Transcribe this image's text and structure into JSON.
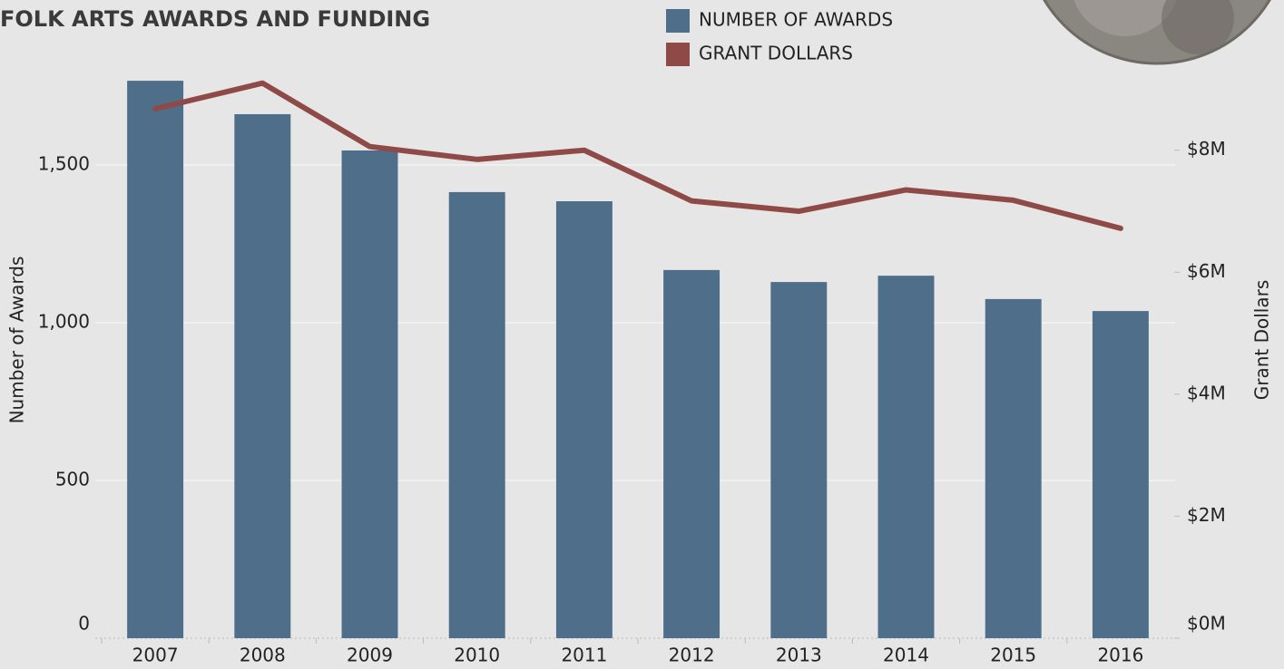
{
  "chart_data": {
    "type": "bar_line",
    "title": "FOLK ARTS AWARDS AND FUNDING",
    "y_label": "Number of Awards",
    "y2_label": "Grant Dollars",
    "categories": [
      "2007",
      "2008",
      "2009",
      "2010",
      "2011",
      "2012",
      "2013",
      "2014",
      "2015",
      "2016"
    ],
    "series": [
      {
        "name": "NUMBER OF AWARDS",
        "type": "bar",
        "color": "#4e6e8a",
        "values": [
          1767,
          1661,
          1546,
          1414,
          1385,
          1167,
          1129,
          1149,
          1075,
          1037
        ]
      },
      {
        "name": "GRANT DOLLARS",
        "type": "line",
        "axis": "y2",
        "color": "#8f4a47",
        "values": [
          8680000,
          9100000,
          8060000,
          7850000,
          8000000,
          7170000,
          7000000,
          7350000,
          7180000,
          6720000
        ]
      }
    ],
    "ylim": [
      0,
      1800
    ],
    "yticks": [
      0,
      500,
      {
        "value": 1000,
        "label": "1,000"
      },
      {
        "value": 1500,
        "label": "1,500"
      }
    ],
    "y2lim": [
      0,
      9310000
    ],
    "y2ticks": [
      {
        "value": 0,
        "label": "$0M"
      },
      {
        "value": 2000000,
        "label": "$2M"
      },
      {
        "value": 4000000,
        "label": "$4M"
      },
      {
        "value": 6000000,
        "label": "$6M"
      },
      {
        "value": 8000000,
        "label": "$8M"
      }
    ],
    "grid": true
  }
}
